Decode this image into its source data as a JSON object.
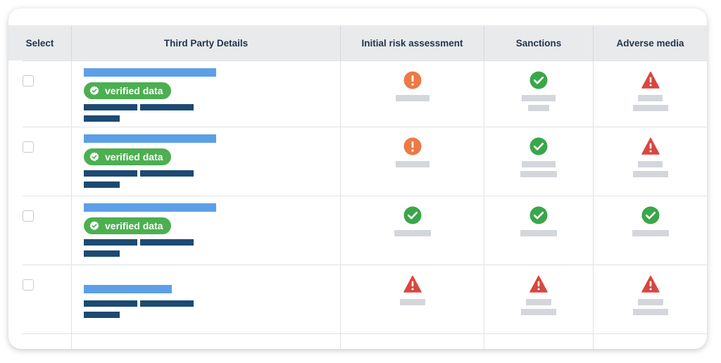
{
  "table": {
    "headers": [
      "Select",
      "Third Party Details",
      "Initial risk assessment",
      "Sanctions",
      "Adverse media"
    ],
    "badge_text": "verified data",
    "rows": [
      {
        "verified": true,
        "risk": "warning",
        "sanctions": "check",
        "adverse": "alert"
      },
      {
        "verified": true,
        "risk": "warning",
        "sanctions": "check",
        "adverse": "alert"
      },
      {
        "verified": true,
        "risk": "check",
        "sanctions": "check",
        "adverse": "check"
      },
      {
        "verified": false,
        "risk": "alert",
        "sanctions": "alert",
        "adverse": "alert"
      }
    ]
  },
  "colors": {
    "header_bg": "#e9eaec",
    "header_text": "#1f3550",
    "name_bar": "#5d9fe6",
    "detail_bar": "#1c4a73",
    "badge_green": "#4caf50",
    "check_green": "#3aa64a",
    "warning_orange": "#ec7a45",
    "alert_red": "#d9463f",
    "placeholder_gray": "#d3d6da"
  },
  "icons": {
    "check": "check-circle-icon",
    "warning": "exclamation-circle-icon",
    "alert": "warning-triangle-icon",
    "badge": "verified-seal-icon"
  }
}
